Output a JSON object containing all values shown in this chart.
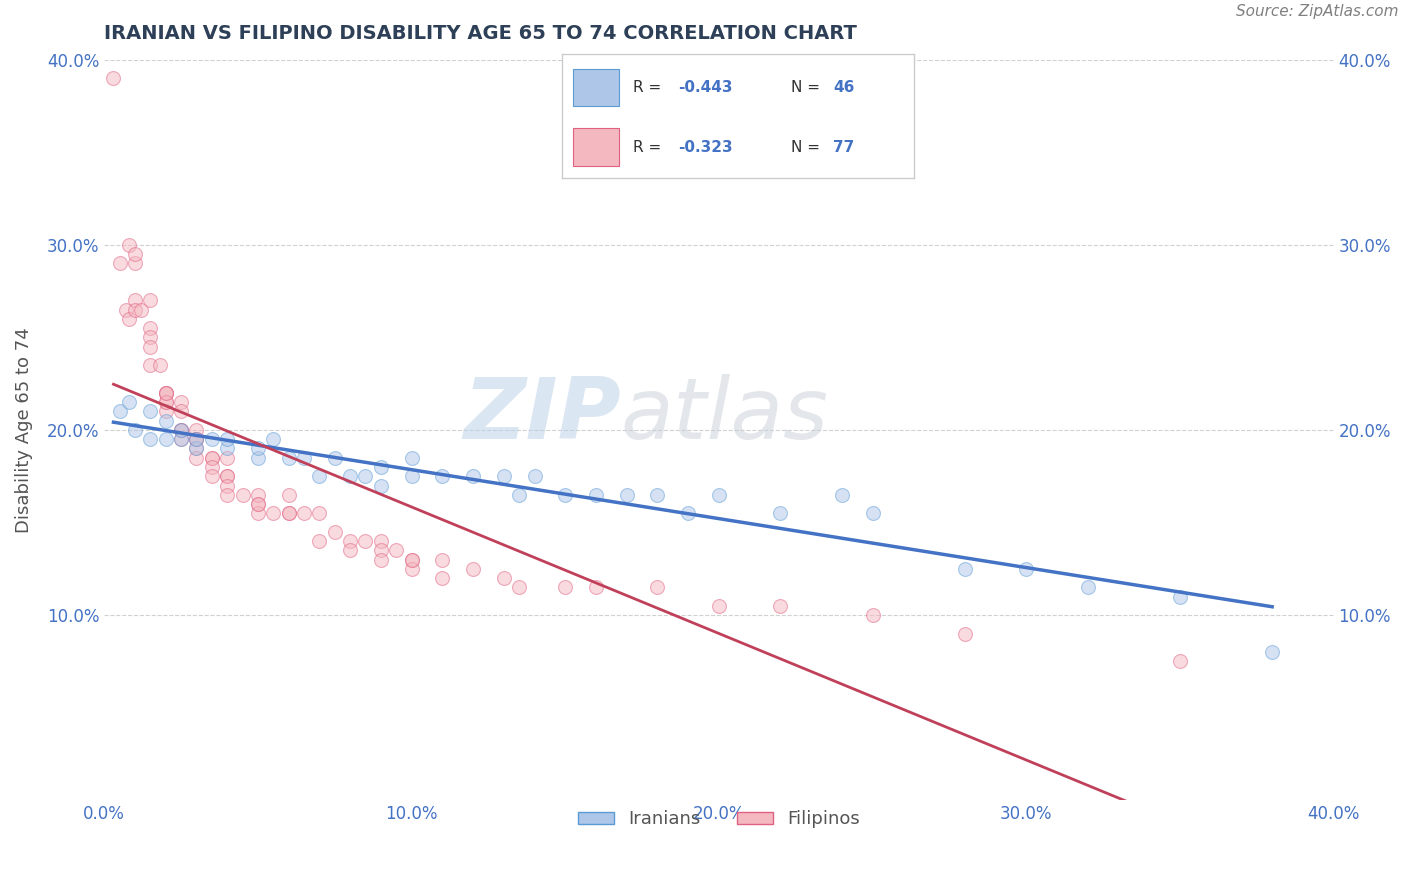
{
  "title": "IRANIAN VS FILIPINO DISABILITY AGE 65 TO 74 CORRELATION CHART",
  "source_text": "Source: ZipAtlas.com",
  "ylabel": "Disability Age 65 to 74",
  "xlabel": "",
  "xlim": [
    0.0,
    0.4
  ],
  "ylim": [
    0.0,
    0.4
  ],
  "xtick_vals": [
    0.0,
    0.1,
    0.2,
    0.3,
    0.4
  ],
  "ytick_vals": [
    0.1,
    0.2,
    0.3,
    0.4
  ],
  "iranian_color": "#aec6e8",
  "filipino_color": "#f4b8c1",
  "iranian_edge": "#5b9bd5",
  "filipino_edge": "#e06080",
  "iranian_R": -0.443,
  "iranian_N": 46,
  "filipino_R": -0.323,
  "filipino_N": 77,
  "watermark_zip": "ZIP",
  "watermark_atlas": "atlas",
  "legend_label_iranian": "Iranians",
  "legend_label_filipino": "Filipinos",
  "iranians_x": [
    0.005,
    0.008,
    0.01,
    0.015,
    0.015,
    0.02,
    0.02,
    0.025,
    0.025,
    0.03,
    0.03,
    0.035,
    0.04,
    0.04,
    0.05,
    0.05,
    0.055,
    0.06,
    0.065,
    0.07,
    0.075,
    0.08,
    0.085,
    0.09,
    0.09,
    0.1,
    0.1,
    0.11,
    0.12,
    0.13,
    0.135,
    0.14,
    0.15,
    0.16,
    0.17,
    0.18,
    0.19,
    0.2,
    0.22,
    0.24,
    0.25,
    0.28,
    0.3,
    0.32,
    0.35,
    0.38
  ],
  "iranians_y": [
    0.21,
    0.215,
    0.2,
    0.195,
    0.21,
    0.195,
    0.205,
    0.195,
    0.2,
    0.19,
    0.195,
    0.195,
    0.19,
    0.195,
    0.185,
    0.19,
    0.195,
    0.185,
    0.185,
    0.175,
    0.185,
    0.175,
    0.175,
    0.17,
    0.18,
    0.175,
    0.185,
    0.175,
    0.175,
    0.175,
    0.165,
    0.175,
    0.165,
    0.165,
    0.165,
    0.165,
    0.155,
    0.165,
    0.155,
    0.165,
    0.155,
    0.125,
    0.125,
    0.115,
    0.11,
    0.08
  ],
  "filipinos_x": [
    0.003,
    0.005,
    0.007,
    0.008,
    0.008,
    0.01,
    0.01,
    0.01,
    0.01,
    0.012,
    0.015,
    0.015,
    0.015,
    0.015,
    0.015,
    0.018,
    0.02,
    0.02,
    0.02,
    0.02,
    0.02,
    0.02,
    0.025,
    0.025,
    0.025,
    0.025,
    0.025,
    0.03,
    0.03,
    0.03,
    0.03,
    0.03,
    0.035,
    0.035,
    0.035,
    0.035,
    0.04,
    0.04,
    0.04,
    0.04,
    0.04,
    0.045,
    0.05,
    0.05,
    0.05,
    0.05,
    0.055,
    0.06,
    0.06,
    0.06,
    0.065,
    0.07,
    0.07,
    0.075,
    0.08,
    0.08,
    0.085,
    0.09,
    0.09,
    0.09,
    0.095,
    0.1,
    0.1,
    0.1,
    0.11,
    0.11,
    0.12,
    0.13,
    0.135,
    0.15,
    0.16,
    0.18,
    0.2,
    0.22,
    0.25,
    0.28,
    0.35
  ],
  "filipinos_y": [
    0.39,
    0.29,
    0.265,
    0.26,
    0.3,
    0.27,
    0.29,
    0.295,
    0.265,
    0.265,
    0.27,
    0.255,
    0.25,
    0.245,
    0.235,
    0.235,
    0.22,
    0.22,
    0.215,
    0.21,
    0.215,
    0.22,
    0.215,
    0.21,
    0.2,
    0.2,
    0.195,
    0.2,
    0.195,
    0.19,
    0.195,
    0.185,
    0.185,
    0.185,
    0.18,
    0.175,
    0.185,
    0.175,
    0.175,
    0.17,
    0.165,
    0.165,
    0.16,
    0.165,
    0.155,
    0.16,
    0.155,
    0.165,
    0.155,
    0.155,
    0.155,
    0.155,
    0.14,
    0.145,
    0.14,
    0.135,
    0.14,
    0.14,
    0.135,
    0.13,
    0.135,
    0.13,
    0.125,
    0.13,
    0.13,
    0.12,
    0.125,
    0.12,
    0.115,
    0.115,
    0.115,
    0.115,
    0.105,
    0.105,
    0.1,
    0.09,
    0.075
  ],
  "title_color": "#2e4057",
  "axis_label_color": "#555555",
  "tick_color": "#4472c4",
  "grid_color": "#cccccc",
  "background_color": "#ffffff",
  "marker_size": 100,
  "alpha": 0.5,
  "line_color_iranian": "#4472c4",
  "line_color_filipino": "#c0405a",
  "iranian_line_start_x": 0.003,
  "iranian_line_end_x": 0.38,
  "filipino_line_start_x": 0.003,
  "filipino_line_end_x": 0.35
}
